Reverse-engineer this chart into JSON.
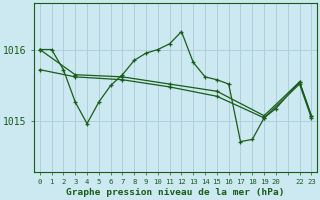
{
  "title": "Graphe pression niveau de la mer (hPa)",
  "background_color": "#cce8f0",
  "plot_bg_color": "#cce8f0",
  "line_color": "#1a5c1a",
  "grid_color": "#aaccd8",
  "text_color": "#1a5c1a",
  "yticks": [
    1015,
    1016
  ],
  "ylim": [
    1014.3,
    1016.65
  ],
  "xlim": [
    -0.5,
    23.5
  ],
  "xtick_labels": [
    "0",
    "1",
    "2",
    "3",
    "4",
    "5",
    "6",
    "7",
    "8",
    "9",
    "10",
    "11",
    "12",
    "13",
    "14",
    "15",
    "16",
    "17",
    "18",
    "19",
    "20",
    "",
    "22",
    "23"
  ],
  "series1": [
    [
      0,
      1016.0
    ],
    [
      1,
      1016.0
    ],
    [
      2,
      1015.72
    ],
    [
      3,
      1015.27
    ],
    [
      4,
      1014.97
    ],
    [
      5,
      1015.27
    ],
    [
      6,
      1015.5
    ],
    [
      7,
      1015.65
    ],
    [
      8,
      1015.85
    ],
    [
      9,
      1015.95
    ],
    [
      10,
      1016.0
    ],
    [
      11,
      1016.08
    ],
    [
      12,
      1016.25
    ],
    [
      13,
      1015.82
    ],
    [
      14,
      1015.62
    ],
    [
      15,
      1015.58
    ],
    [
      16,
      1015.52
    ],
    [
      17,
      1014.72
    ],
    [
      18,
      1014.75
    ],
    [
      19,
      1015.05
    ],
    [
      20,
      1015.18
    ],
    [
      22,
      1015.55
    ],
    [
      23,
      1015.08
    ]
  ],
  "series2": [
    [
      0,
      1016.0
    ],
    [
      3,
      1015.65
    ],
    [
      7,
      1015.62
    ],
    [
      11,
      1015.52
    ],
    [
      15,
      1015.42
    ],
    [
      19,
      1015.08
    ],
    [
      22,
      1015.55
    ],
    [
      23,
      1015.08
    ]
  ],
  "series3": [
    [
      0,
      1015.72
    ],
    [
      3,
      1015.62
    ],
    [
      7,
      1015.58
    ],
    [
      11,
      1015.48
    ],
    [
      15,
      1015.35
    ],
    [
      19,
      1015.05
    ],
    [
      22,
      1015.52
    ],
    [
      23,
      1015.05
    ]
  ]
}
